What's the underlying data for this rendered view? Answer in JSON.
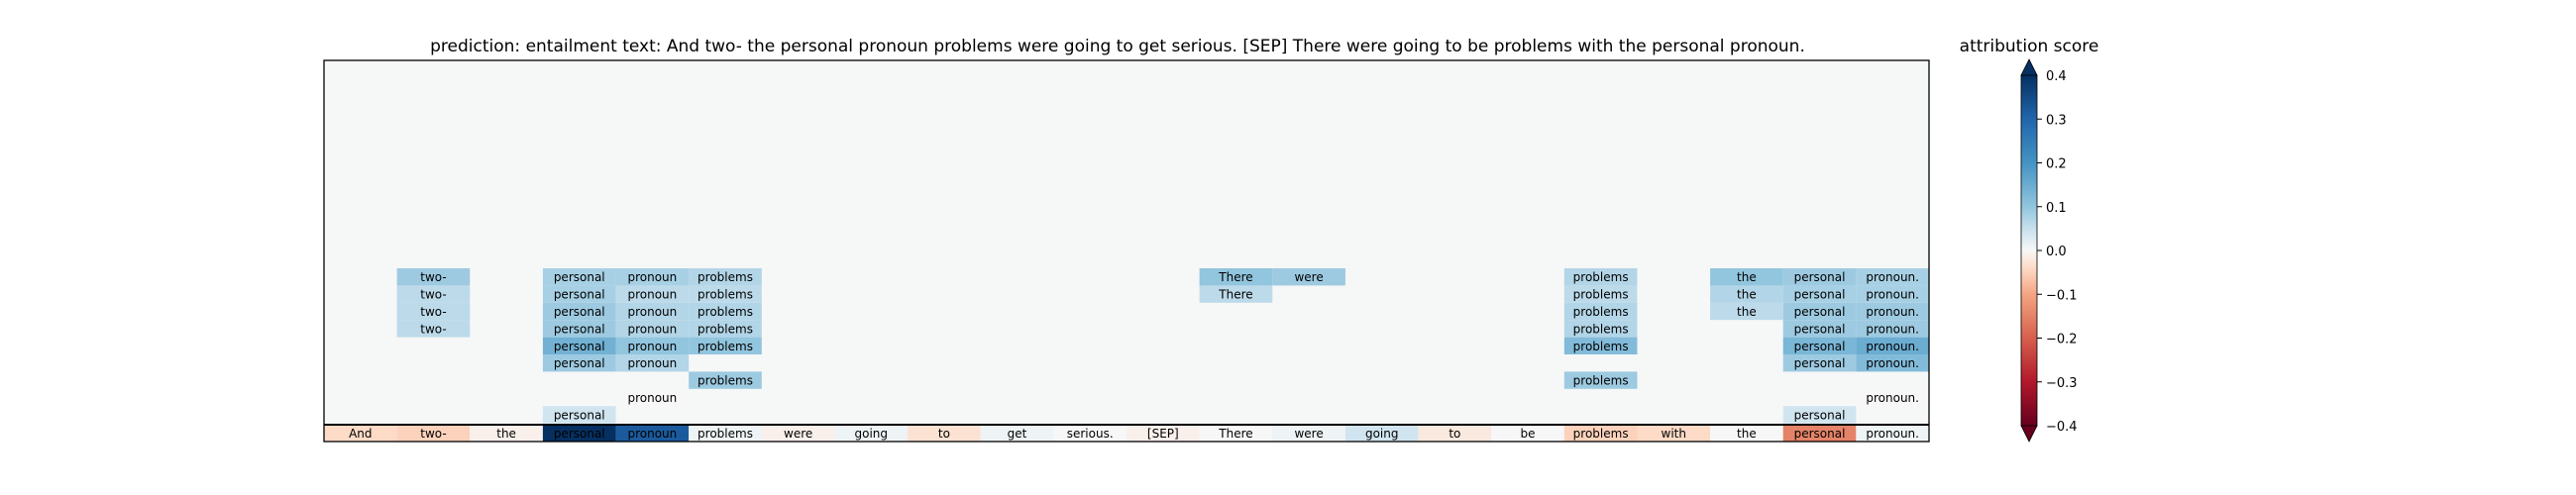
{
  "chart_data": {
    "type": "heatmap",
    "title": "prediction:  entailment     text:  And two- the personal pronoun problems were going to get serious. [SEP] There were going to be problems with the personal pronoun.",
    "colorbar_label": "attribution score",
    "colormap": "RdBu",
    "clim": [
      -0.4,
      0.4
    ],
    "colorbar_ticks": [
      "0.3",
      "0.2",
      "0.1",
      "0.0",
      "−0.1",
      "−0.2",
      "−0.3"
    ],
    "colorbar_edge_labels": [
      "0.4",
      "−0.4"
    ],
    "tokens": [
      "And",
      "two-",
      "the",
      "personal",
      "pronoun",
      "problems",
      "were",
      "going",
      "to",
      "get",
      "serious.",
      "[SEP]",
      "There",
      "were",
      "going",
      "to",
      "be",
      "problems",
      "with",
      "the",
      "personal",
      "pronoun."
    ],
    "token_scores": [
      -0.04,
      -0.05,
      -0.01,
      0.42,
      0.32,
      0.01,
      -0.01,
      0.01,
      -0.03,
      0.01,
      0.0,
      -0.01,
      0.0,
      0.01,
      0.04,
      -0.02,
      0.0,
      -0.05,
      -0.04,
      0.0,
      -0.15,
      0.01
    ],
    "history_rows": [
      {
        "row": 1,
        "cells": [
          {
            "col": 3,
            "text": "personal",
            "value": 0.04
          },
          {
            "col": 20,
            "text": "personal",
            "value": 0.04
          }
        ]
      },
      {
        "row": 2,
        "cells": [
          {
            "col": 4,
            "text": "pronoun",
            "value": 0.0
          },
          {
            "col": 21,
            "text": "pronoun.",
            "value": 0.0
          }
        ]
      },
      {
        "row": 3,
        "cells": [
          {
            "col": 5,
            "text": "problems",
            "value": 0.09
          },
          {
            "col": 17,
            "text": "problems",
            "value": 0.09
          }
        ]
      },
      {
        "row": 4,
        "cells": [
          {
            "col": 3,
            "text": "personal",
            "value": 0.09
          },
          {
            "col": 4,
            "text": "pronoun",
            "value": 0.07
          },
          {
            "col": 20,
            "text": "personal",
            "value": 0.09
          },
          {
            "col": 21,
            "text": "pronoun.",
            "value": 0.12
          }
        ]
      },
      {
        "row": 5,
        "cells": [
          {
            "col": 3,
            "text": "personal",
            "value": 0.14
          },
          {
            "col": 4,
            "text": "pronoun",
            "value": 0.1
          },
          {
            "col": 5,
            "text": "problems",
            "value": 0.1
          },
          {
            "col": 17,
            "text": "problems",
            "value": 0.12
          },
          {
            "col": 20,
            "text": "personal",
            "value": 0.13
          },
          {
            "col": 21,
            "text": "pronoun.",
            "value": 0.15
          }
        ]
      },
      {
        "row": 6,
        "cells": [
          {
            "col": 1,
            "text": "two-",
            "value": 0.06
          },
          {
            "col": 3,
            "text": "personal",
            "value": 0.09
          },
          {
            "col": 4,
            "text": "pronoun",
            "value": 0.07
          },
          {
            "col": 5,
            "text": "problems",
            "value": 0.07
          },
          {
            "col": 17,
            "text": "problems",
            "value": 0.07
          },
          {
            "col": 20,
            "text": "personal",
            "value": 0.09
          },
          {
            "col": 21,
            "text": "pronoun.",
            "value": 0.09
          }
        ]
      },
      {
        "row": 7,
        "cells": [
          {
            "col": 1,
            "text": "two-",
            "value": 0.06
          },
          {
            "col": 3,
            "text": "personal",
            "value": 0.09
          },
          {
            "col": 4,
            "text": "pronoun",
            "value": 0.07
          },
          {
            "col": 5,
            "text": "problems",
            "value": 0.07
          },
          {
            "col": 17,
            "text": "problems",
            "value": 0.07
          },
          {
            "col": 19,
            "text": "the",
            "value": 0.06
          },
          {
            "col": 20,
            "text": "personal",
            "value": 0.09
          },
          {
            "col": 21,
            "text": "pronoun.",
            "value": 0.09
          }
        ]
      },
      {
        "row": 8,
        "cells": [
          {
            "col": 1,
            "text": "two-",
            "value": 0.06
          },
          {
            "col": 3,
            "text": "personal",
            "value": 0.08
          },
          {
            "col": 4,
            "text": "pronoun",
            "value": 0.06
          },
          {
            "col": 5,
            "text": "problems",
            "value": 0.06
          },
          {
            "col": 12,
            "text": "There",
            "value": 0.06
          },
          {
            "col": 17,
            "text": "problems",
            "value": 0.06
          },
          {
            "col": 19,
            "text": "the",
            "value": 0.07
          },
          {
            "col": 20,
            "text": "personal",
            "value": 0.08
          },
          {
            "col": 21,
            "text": "pronoun.",
            "value": 0.08
          }
        ]
      },
      {
        "row": 9,
        "cells": [
          {
            "col": 1,
            "text": "two-",
            "value": 0.09
          },
          {
            "col": 3,
            "text": "personal",
            "value": 0.08
          },
          {
            "col": 4,
            "text": "pronoun",
            "value": 0.08
          },
          {
            "col": 5,
            "text": "problems",
            "value": 0.07
          },
          {
            "col": 12,
            "text": "There",
            "value": 0.1
          },
          {
            "col": 13,
            "text": "were",
            "value": 0.09
          },
          {
            "col": 17,
            "text": "problems",
            "value": 0.07
          },
          {
            "col": 19,
            "text": "the",
            "value": 0.1
          },
          {
            "col": 20,
            "text": "personal",
            "value": 0.09
          },
          {
            "col": 21,
            "text": "pronoun.",
            "value": 0.08
          }
        ]
      }
    ]
  }
}
